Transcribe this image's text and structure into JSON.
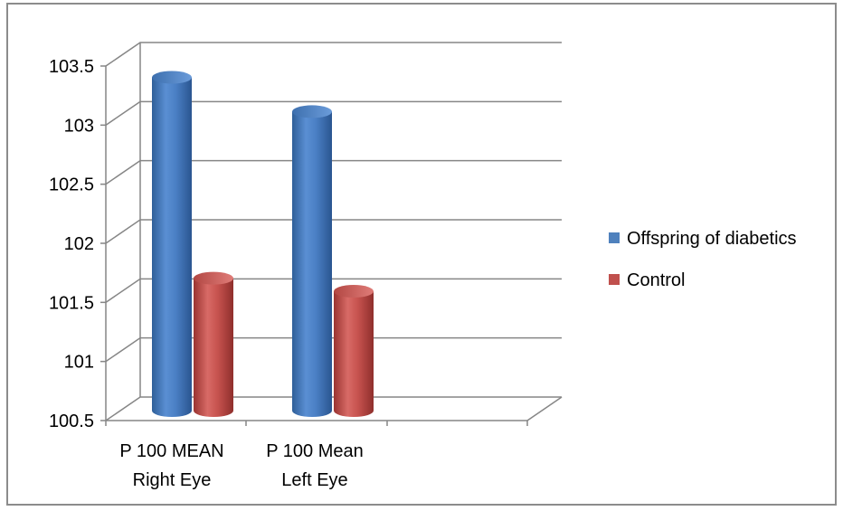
{
  "chart_data": {
    "type": "bar",
    "categories": [
      [
        "P 100  MEAN",
        "Right Eye"
      ],
      [
        "P 100 Mean",
        "Left Eye"
      ]
    ],
    "series": [
      {
        "name": "Offspring of diabetics",
        "color": "#4f81bd",
        "values": [
          103.32,
          103.03
        ]
      },
      {
        "name": "Control",
        "color": "#c0504d",
        "values": [
          101.62,
          101.51
        ]
      }
    ],
    "ylim": [
      100.5,
      103.5
    ],
    "yticks": [
      "100.5",
      "101",
      "101.5",
      "102",
      "102.5",
      "103",
      "103.5"
    ],
    "grid": true,
    "legend_position": "right",
    "title": "",
    "xlabel": "",
    "ylabel": ""
  }
}
